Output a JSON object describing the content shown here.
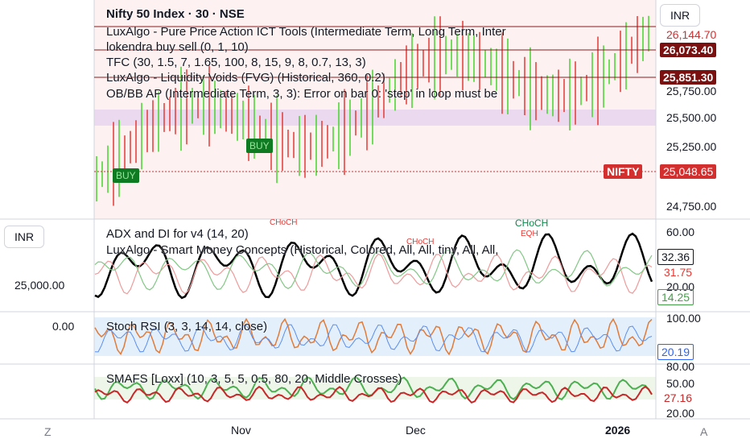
{
  "main_pane": {
    "title": "Nifty 50 Index · 30 · NSE",
    "indicators": [
      "LuxAlgo - Pure Price Action ICT Tools (Intermediate Term, Long Term, Inter",
      "lokendra buy sell (0, 1, 10)",
      "TFC (30, 1.5, 7, 1.65, 100, 8, 15, 9, 8, 0.7, 13, 3)",
      "LuxAlgo - Liquidity Voids (FVG) (Historical, 360, 0.2)",
      "OB/BB AP (Intermediate Term, 3, 3): Error on bar 0: 'step' in loop must be"
    ],
    "currency": "INR",
    "price_labels": [
      "26,144.70",
      "26,073.40",
      "25,851.30",
      "25,750.00",
      "25,500.00",
      "25,250.00",
      "25,048.65",
      "24,750.00"
    ],
    "symbol_tag": "NIFTY",
    "annotations": [
      "BUY",
      "BUY"
    ]
  },
  "left_axis": {
    "currency": "INR",
    "labels": [
      "25,000.00",
      "0.00"
    ]
  },
  "adx_pane": {
    "indicators": [
      "ADX and DI for v4 (14, 20)",
      "LuxAlgo - Smart Money Concepts (Historical, Colored, All, All, tiny, All, All,"
    ],
    "annotations": [
      "CHoCH",
      "CHoCH",
      "CHoCH",
      "EQH"
    ],
    "axis_labels": [
      "60.00",
      "32.36",
      "31.75",
      "20.00",
      "14.25"
    ]
  },
  "stoch_pane": {
    "indicators": [
      "Stoch RSI (3, 3, 14, 14, close)"
    ],
    "axis_labels": [
      "100.00",
      "20.19"
    ]
  },
  "smafs_pane": {
    "indicators": [
      "SMAFS [Loxx] (10, 3, 5, 5, 0.5, 80, 20, Middle Crosses)"
    ],
    "axis_labels": [
      "80.00",
      "50.00",
      "27.16",
      "20.00"
    ]
  },
  "time_axis": {
    "left_button": "Z",
    "labels": [
      "Nov",
      "Dec",
      "2026"
    ],
    "right_button": "A"
  }
}
